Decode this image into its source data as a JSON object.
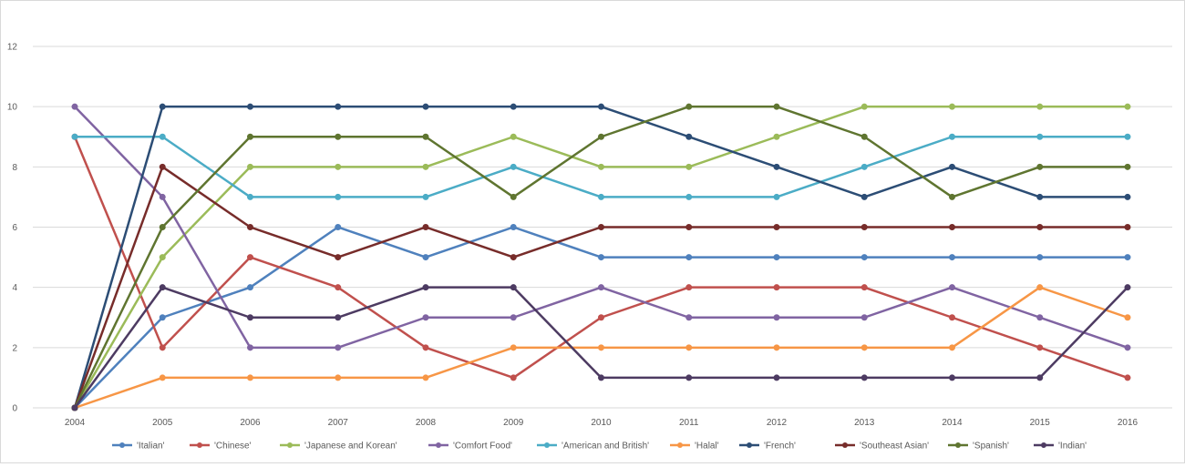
{
  "chart_data": {
    "type": "line",
    "title": "",
    "xlabel": "",
    "ylabel": "",
    "categories": [
      "2004",
      "2005",
      "2006",
      "2007",
      "2008",
      "2009",
      "2010",
      "2011",
      "2012",
      "2013",
      "2014",
      "2015",
      "2016"
    ],
    "ylim": [
      0,
      12
    ],
    "yticks": [
      "0",
      "2",
      "4",
      "6",
      "8",
      "10",
      "12"
    ],
    "grid": "horizontal",
    "legend": "bottom",
    "series": [
      {
        "name": "'Italian'",
        "color": "#4f81bd",
        "values": [
          0,
          3,
          4,
          6,
          5,
          6,
          5,
          5,
          5,
          5,
          5,
          5,
          5
        ]
      },
      {
        "name": "'Chinese'",
        "color": "#c0504d",
        "values": [
          9,
          2,
          5,
          4,
          2,
          1,
          3,
          4,
          4,
          4,
          3,
          2,
          1
        ]
      },
      {
        "name": "'Japanese and Korean'",
        "color": "#9bbb59",
        "values": [
          0,
          5,
          8,
          8,
          8,
          9,
          8,
          8,
          9,
          10,
          10,
          10,
          10
        ]
      },
      {
        "name": "'Comfort Food'",
        "color": "#8064a2",
        "values": [
          10,
          7,
          2,
          2,
          3,
          3,
          4,
          3,
          3,
          3,
          4,
          3,
          2
        ]
      },
      {
        "name": "'American and British'",
        "color": "#4bacc6",
        "values": [
          9,
          9,
          7,
          7,
          7,
          8,
          7,
          7,
          7,
          8,
          9,
          9,
          9
        ]
      },
      {
        "name": "'Halal'",
        "color": "#f79646",
        "values": [
          0,
          1,
          1,
          1,
          1,
          2,
          2,
          2,
          2,
          2,
          2,
          4,
          3
        ]
      },
      {
        "name": "'French'",
        "color": "#2c4d75",
        "values": [
          0,
          10,
          10,
          10,
          10,
          10,
          10,
          9,
          8,
          7,
          8,
          7,
          7
        ]
      },
      {
        "name": "'Southeast Asian'",
        "color": "#772c2a",
        "values": [
          0,
          8,
          6,
          5,
          6,
          5,
          6,
          6,
          6,
          6,
          6,
          6,
          6
        ]
      },
      {
        "name": "'Spanish'",
        "color": "#5f7530",
        "values": [
          0,
          6,
          9,
          9,
          9,
          7,
          9,
          10,
          10,
          9,
          7,
          8,
          8
        ]
      },
      {
        "name": "'Indian'",
        "color": "#4d3b62",
        "values": [
          0,
          4,
          3,
          3,
          4,
          4,
          1,
          1,
          1,
          1,
          1,
          1,
          4
        ]
      }
    ]
  }
}
